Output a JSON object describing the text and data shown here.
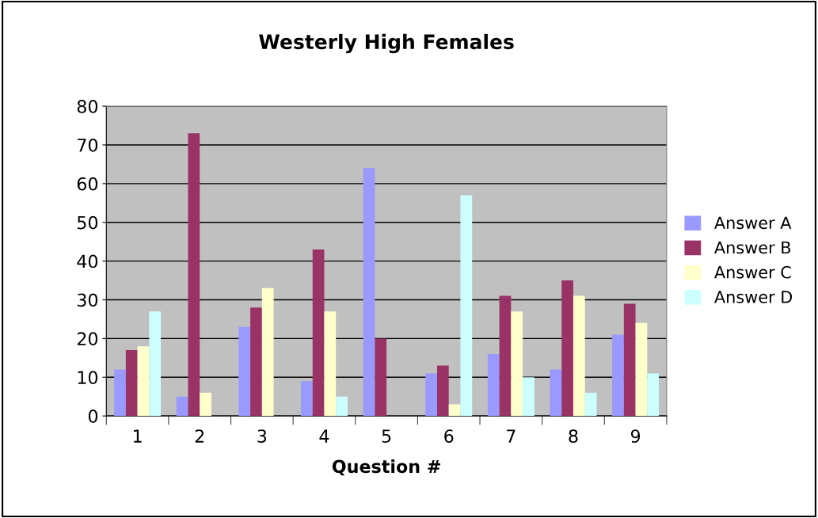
{
  "chart_data": {
    "type": "bar",
    "title": "Westerly High Females",
    "xlabel": "Question #",
    "categories": [
      "1",
      "2",
      "3",
      "4",
      "5",
      "6",
      "7",
      "8",
      "9"
    ],
    "series": [
      {
        "name": "Answer A",
        "color": "#9999ff",
        "values": [
          12,
          5,
          23,
          9,
          64,
          11,
          16,
          12,
          21
        ]
      },
      {
        "name": "Answer B",
        "color": "#993366",
        "values": [
          17,
          73,
          28,
          43,
          20,
          13,
          31,
          35,
          29
        ]
      },
      {
        "name": "Answer C",
        "color": "#ffffcc",
        "values": [
          18,
          6,
          33,
          27,
          0,
          3,
          27,
          31,
          24
        ]
      },
      {
        "name": "Answer D",
        "color": "#ccffff",
        "values": [
          27,
          0,
          0,
          5,
          0,
          57,
          10,
          6,
          11
        ]
      }
    ],
    "ylim": [
      0,
      80
    ],
    "yticks": [
      0,
      10,
      20,
      30,
      40,
      50,
      60,
      70,
      80
    ],
    "grid": "y",
    "legend": "right"
  }
}
